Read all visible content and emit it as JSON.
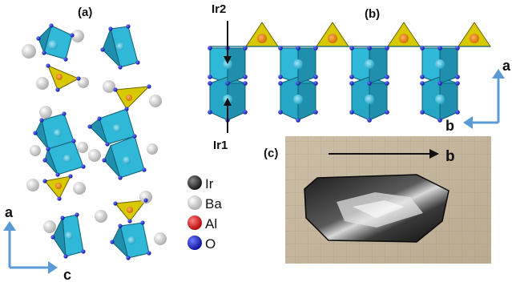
{
  "panels": {
    "a": {
      "label": "(a)"
    },
    "b": {
      "label": "(b)",
      "site_labels": [
        "Ir2",
        "Ir1"
      ]
    },
    "c": {
      "label": "(c)"
    }
  },
  "axes": {
    "panel_a": {
      "vertical": "a",
      "horizontal": "c"
    },
    "panel_b": {
      "vertical": "a",
      "horizontal": "b"
    },
    "panel_c": {
      "arrow": "b"
    }
  },
  "legend": [
    {
      "element": "Ir",
      "color": "#333333"
    },
    {
      "element": "Ba",
      "color": "#cfcfcf"
    },
    {
      "element": "Al",
      "color": "#e01010"
    },
    {
      "element": "O",
      "color": "#1020d0"
    }
  ],
  "colors": {
    "octahedron": "#2fb8d8",
    "tetrahedron": "#d8c800",
    "arrow": "#5b9bd5",
    "oxygen": "#1a1ad0"
  }
}
